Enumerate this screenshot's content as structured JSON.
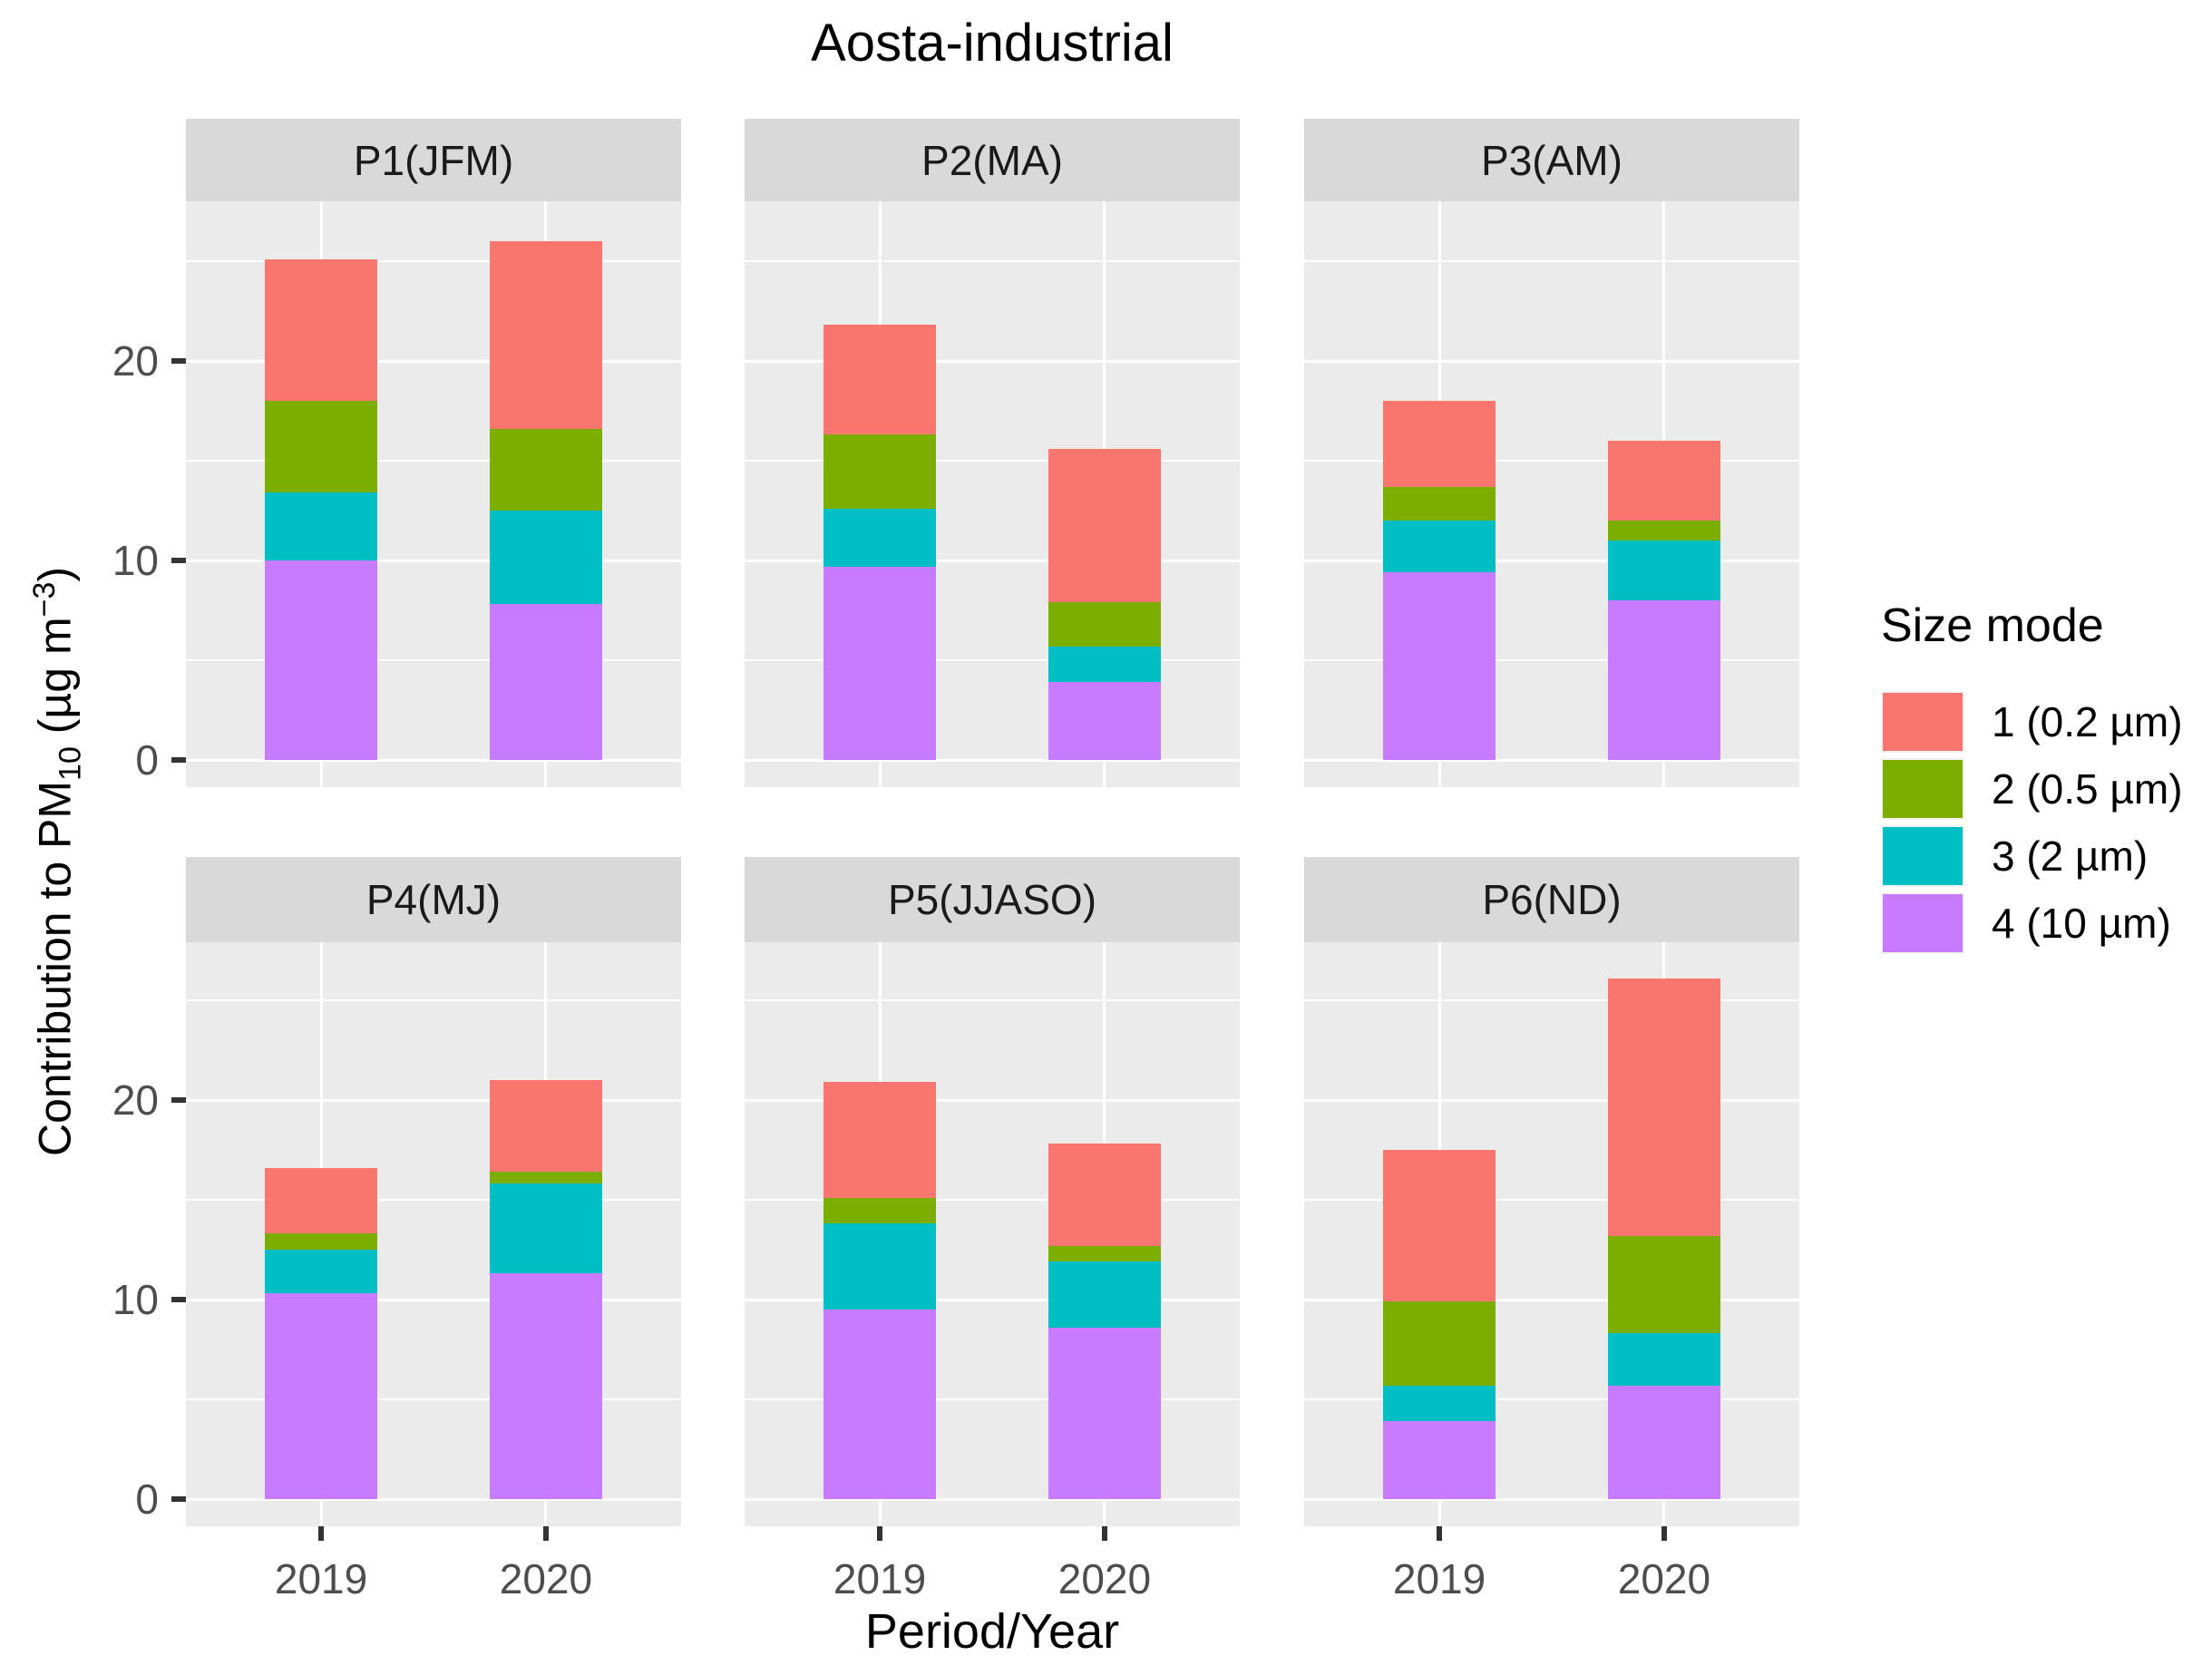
{
  "title": "Aosta-industrial",
  "axes": {
    "x_label": "Period/Year",
    "y_label": {
      "pre": "Contribution to PM",
      "sub": "10",
      "mid": " (µg m",
      "sup": "−3",
      "post": ")"
    },
    "y_ticks": [
      "0",
      "10",
      "20"
    ],
    "x_categories": [
      "2019",
      "2020"
    ]
  },
  "legend": {
    "title": "Size mode",
    "items": [
      {
        "label": "1 (0.2 µm)",
        "color": "#F8766D"
      },
      {
        "label": "2 (0.5 µm)",
        "color": "#7CAE00"
      },
      {
        "label": "3 (2 µm)",
        "color": "#00BFC4"
      },
      {
        "label": "4 (10 µm)",
        "color": "#C77CFF"
      }
    ]
  },
  "style_colors": {
    "panel_background": "#EBEBEB",
    "strip_background": "#D9D9D9",
    "gridline": "#FFFFFF",
    "axis_text": "#4D4D4D",
    "tick_mark": "#333333"
  },
  "chart_data": {
    "type": "bar",
    "stacked": true,
    "title": "Aosta-industrial",
    "xlabel": "Period/Year",
    "ylabel": "Contribution to PM10 (µg m-3)",
    "categories": [
      "2019",
      "2020"
    ],
    "ylim": [
      0,
      28
    ],
    "major_gridlines_y": [
      0,
      10,
      20
    ],
    "minor_gridlines_y": [
      5,
      15,
      25
    ],
    "legend_position": "right",
    "stack_order_bottom_to_top": [
      "4 (10 µm)",
      "3 (2 µm)",
      "2 (0.5 µm)",
      "1 (0.2 µm)"
    ],
    "facets": [
      {
        "label": "P1(JFM)",
        "bars": [
          {
            "category": "2019",
            "values": {
              "4 (10 µm)": 10.0,
              "3 (2 µm)": 3.4,
              "2 (0.5 µm)": 4.6,
              "1 (0.2 µm)": 7.1
            },
            "total": 25.1
          },
          {
            "category": "2020",
            "values": {
              "4 (10 µm)": 7.8,
              "3 (2 µm)": 4.7,
              "2 (0.5 µm)": 4.1,
              "1 (0.2 µm)": 9.4
            },
            "total": 26.0
          }
        ]
      },
      {
        "label": "P2(MA)",
        "bars": [
          {
            "category": "2019",
            "values": {
              "4 (10 µm)": 9.7,
              "3 (2 µm)": 2.9,
              "2 (0.5 µm)": 3.7,
              "1 (0.2 µm)": 5.5
            },
            "total": 21.8
          },
          {
            "category": "2020",
            "values": {
              "4 (10 µm)": 3.9,
              "3 (2 µm)": 1.8,
              "2 (0.5 µm)": 2.2,
              "1 (0.2 µm)": 7.7
            },
            "total": 15.6
          }
        ]
      },
      {
        "label": "P3(AM)",
        "bars": [
          {
            "category": "2019",
            "values": {
              "4 (10 µm)": 9.4,
              "3 (2 µm)": 2.6,
              "2 (0.5 µm)": 1.7,
              "1 (0.2 µm)": 4.3
            },
            "total": 18.0
          },
          {
            "category": "2020",
            "values": {
              "4 (10 µm)": 8.0,
              "3 (2 µm)": 3.0,
              "2 (0.5 µm)": 1.0,
              "1 (0.2 µm)": 4.0
            },
            "total": 16.0
          }
        ]
      },
      {
        "label": "P4(MJ)",
        "bars": [
          {
            "category": "2019",
            "values": {
              "4 (10 µm)": 10.3,
              "3 (2 µm)": 2.2,
              "2 (0.5 µm)": 0.8,
              "1 (0.2 µm)": 3.3
            },
            "total": 16.6
          },
          {
            "category": "2020",
            "values": {
              "4 (10 µm)": 11.3,
              "3 (2 µm)": 4.5,
              "2 (0.5 µm)": 0.6,
              "1 (0.2 µm)": 4.6
            },
            "total": 21.0
          }
        ]
      },
      {
        "label": "P5(JJASO)",
        "bars": [
          {
            "category": "2019",
            "values": {
              "4 (10 µm)": 9.5,
              "3 (2 µm)": 4.3,
              "2 (0.5 µm)": 1.3,
              "1 (0.2 µm)": 5.8
            },
            "total": 20.9
          },
          {
            "category": "2020",
            "values": {
              "4 (10 µm)": 8.6,
              "3 (2 µm)": 3.3,
              "2 (0.5 µm)": 0.8,
              "1 (0.2 µm)": 5.1
            },
            "total": 17.8
          }
        ]
      },
      {
        "label": "P6(ND)",
        "bars": [
          {
            "category": "2019",
            "values": {
              "4 (10 µm)": 3.9,
              "3 (2 µm)": 1.8,
              "2 (0.5 µm)": 4.2,
              "1 (0.2 µm)": 7.6
            },
            "total": 17.5
          },
          {
            "category": "2020",
            "values": {
              "4 (10 µm)": 5.7,
              "3 (2 µm)": 2.6,
              "2 (0.5 µm)": 4.9,
              "1 (0.2 µm)": 12.9
            },
            "total": 26.1
          }
        ]
      }
    ]
  }
}
